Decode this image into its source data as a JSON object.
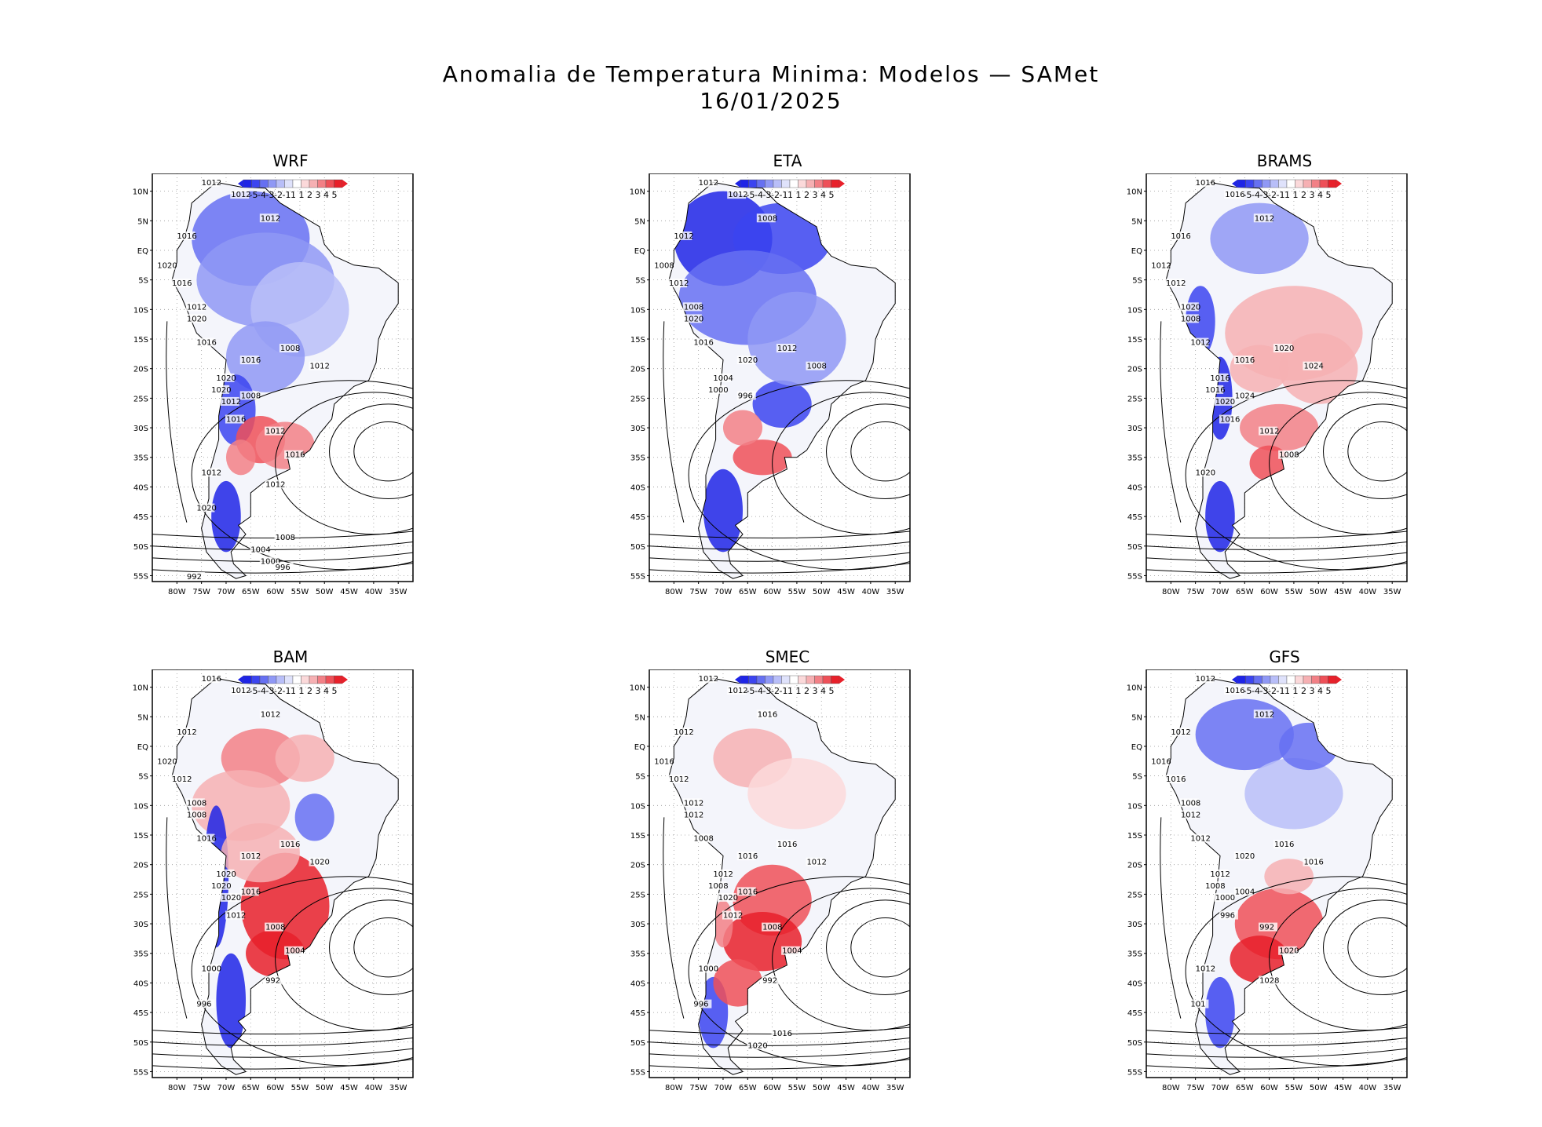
{
  "title_line1": "Anomalia de Temperatura Minima: Modelos — SAMet",
  "title_line2": "16/01/2025",
  "panels": [
    {
      "name": "WRF",
      "labels": [
        "1012",
        "1012",
        "1012",
        "1016",
        "1020",
        "1016",
        "1012",
        "1020",
        "1016",
        "1008",
        "1016",
        "1012",
        "1020",
        "1020",
        "1008",
        "1012",
        "1016",
        "1012",
        "1016",
        "1012",
        "1020",
        "1012",
        "1008",
        "1004",
        "1000",
        "996",
        "992"
      ]
    },
    {
      "name": "ETA",
      "labels": [
        "1012",
        "1012",
        "1008",
        "1012",
        "1008",
        "1012",
        "1008",
        "1020",
        "1016",
        "1012",
        "1020",
        "1008",
        "1004",
        "1000",
        "996"
      ]
    },
    {
      "name": "BRAMS",
      "labels": [
        "1016",
        "1016",
        "1012",
        "1016",
        "1012",
        "1012",
        "1020",
        "1008",
        "1012",
        "1020",
        "1016",
        "1024",
        "1016",
        "1016",
        "1024",
        "1020",
        "1016",
        "1012",
        "1008",
        "1020"
      ]
    },
    {
      "name": "BAM",
      "labels": [
        "1016",
        "1012",
        "1012",
        "1012",
        "1020",
        "1012",
        "1008",
        "1008",
        "1016",
        "1016",
        "1012",
        "1020",
        "1020",
        "1020",
        "1016",
        "1020",
        "1012",
        "1008",
        "1004",
        "1000",
        "996",
        "992"
      ]
    },
    {
      "name": "SMEC",
      "labels": [
        "1012",
        "1012",
        "1016",
        "1012",
        "1016",
        "1012",
        "1012",
        "1012",
        "1008",
        "1016",
        "1016",
        "1012",
        "1012",
        "1008",
        "1016",
        "1020",
        "1012",
        "1008",
        "1004",
        "1000",
        "996",
        "992",
        "1016",
        "1020"
      ]
    },
    {
      "name": "GFS",
      "labels": [
        "1012",
        "1016",
        "1012",
        "1012",
        "1016",
        "1016",
        "1008",
        "1012",
        "1012",
        "1016",
        "1020",
        "1016",
        "1012",
        "1008",
        "1004",
        "1000",
        "996",
        "992",
        "1020",
        "1012",
        "101",
        "1028"
      ]
    }
  ],
  "lat_ticks": [
    "10N",
    "5N",
    "EQ",
    "5S",
    "10S",
    "15S",
    "20S",
    "25S",
    "30S",
    "35S",
    "40S",
    "45S",
    "50S",
    "55S"
  ],
  "lon_ticks": [
    "80W",
    "75W",
    "70W",
    "65W",
    "60W",
    "55W",
    "50W",
    "45W",
    "40W",
    "35W"
  ],
  "colorbar": {
    "labels": [
      "-5",
      "-4",
      "-3",
      "-2",
      "-1",
      "1",
      "1",
      "2",
      "3",
      "4",
      "5"
    ],
    "colors": [
      "#1e24e6",
      "#3b44f0",
      "#6670f2",
      "#8f98f5",
      "#b8bef8",
      "#dfe2fb",
      "#ffffff",
      "#fbd9da",
      "#f6b0b3",
      "#f28086",
      "#ee5058",
      "#e8202a"
    ]
  }
}
